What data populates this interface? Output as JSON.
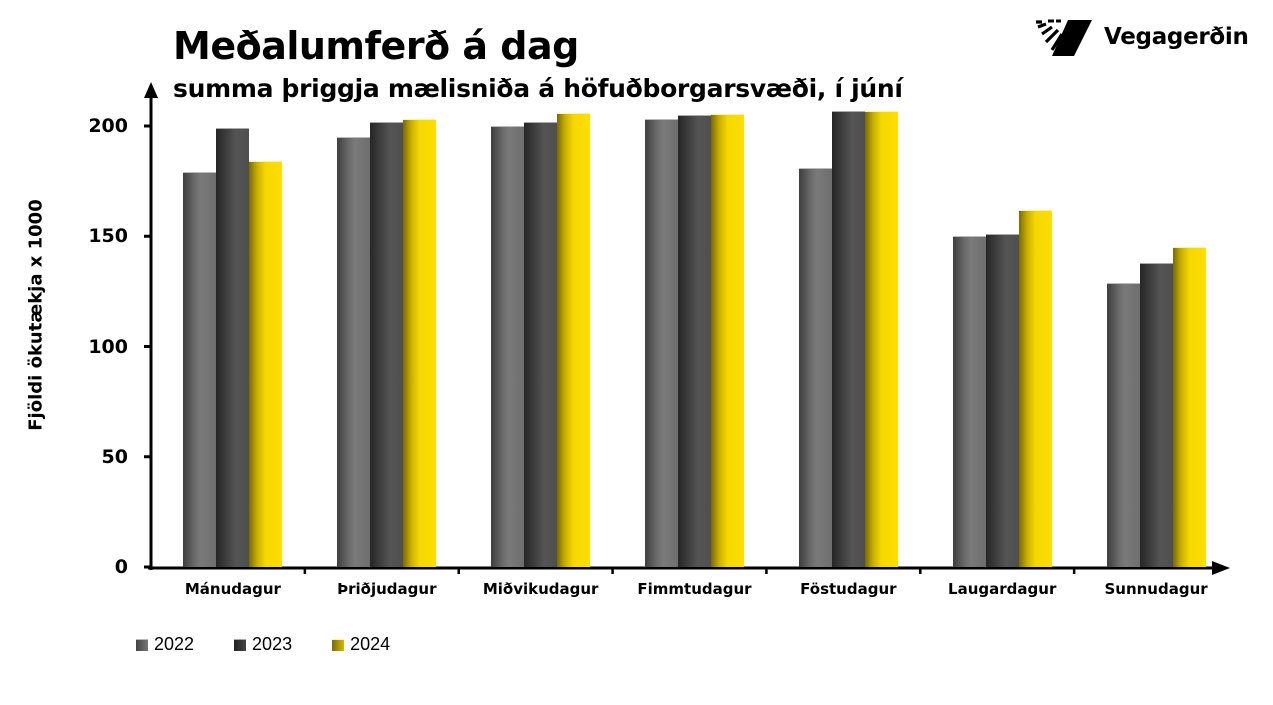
{
  "header": {
    "title": "Meðalumferð á dag",
    "subtitle": "summa þriggja mælisniða á höfuðborgarsvæði, í júní"
  },
  "logo": {
    "text": "Vegagerðin",
    "icon": "vegagerdin-logo-icon"
  },
  "colors": {
    "2022": "#6e6e6e",
    "2023": "#454545",
    "2024": "#ffde00"
  },
  "chart_data": {
    "type": "bar",
    "title": "Meðalumferð á dag",
    "subtitle": "summa þriggja mælisniða á höfuðborgarsvæði, í júní",
    "xlabel": "",
    "ylabel": "Fjöldi ökutækja x 1000",
    "ylim": [
      0,
      210
    ],
    "yticks": [
      0,
      50,
      100,
      150,
      200
    ],
    "grid": false,
    "legend_position": "bottom-left",
    "categories": [
      "Mánudagur",
      "Þriðjudagur",
      "Miðvikudagur",
      "Fimmtudagur",
      "Föstudagur",
      "Laugardagur",
      "Sunnudagur"
    ],
    "series": [
      {
        "name": "2022",
        "values": [
          179,
          195,
          200,
          203,
          181,
          150,
          129
        ]
      },
      {
        "name": "2023",
        "values": [
          199,
          202,
          202,
          205,
          207,
          151,
          138
        ]
      },
      {
        "name": "2024",
        "values": [
          184,
          203,
          206,
          205.5,
          207,
          162,
          145
        ]
      }
    ]
  }
}
